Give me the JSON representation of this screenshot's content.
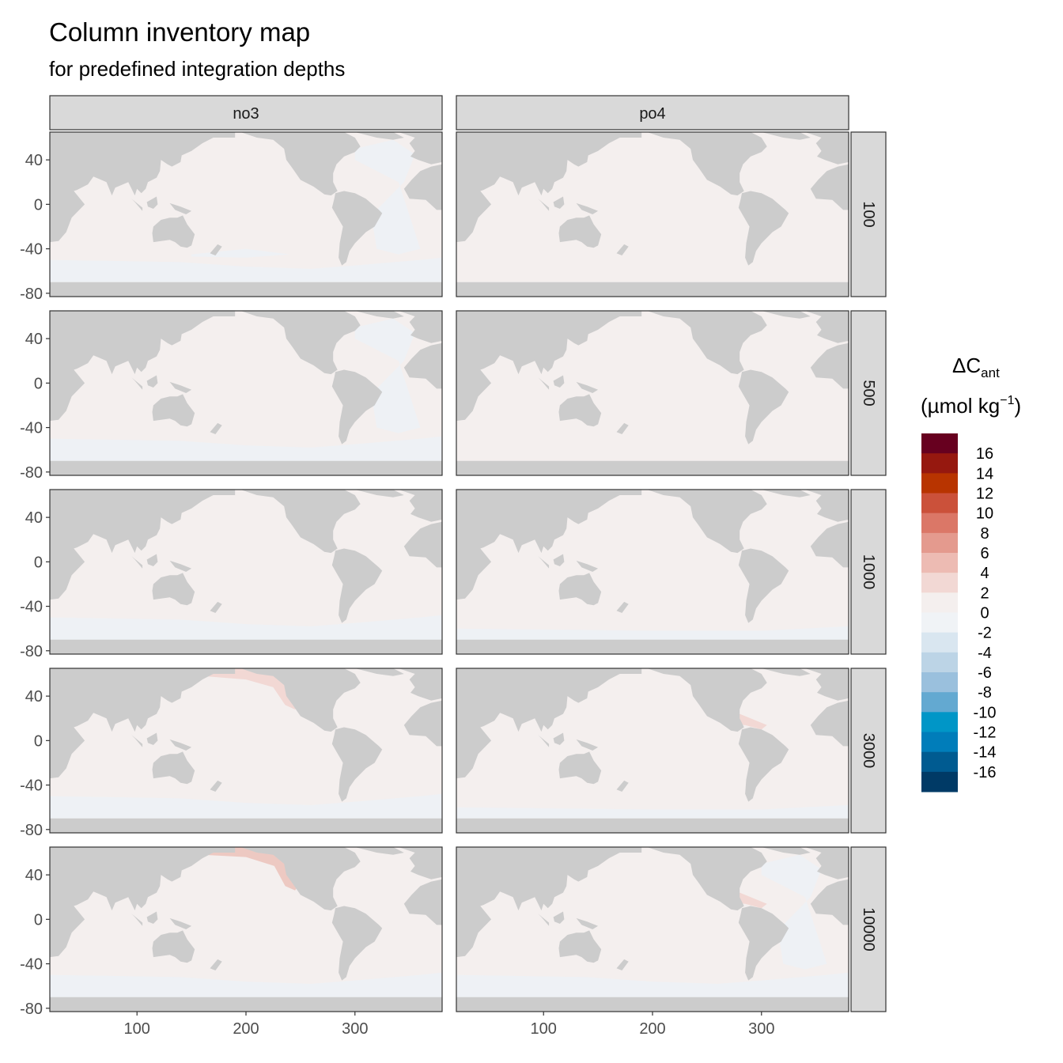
{
  "title": "Column inventory map",
  "subtitle": "for predefined integration depths",
  "chart_data": {
    "type": "heatmap",
    "title": "Column inventory map",
    "subtitle": "for predefined integration depths",
    "facet_columns": [
      "no3",
      "po4"
    ],
    "facet_rows": [
      "100",
      "500",
      "1000",
      "3000",
      "10000"
    ],
    "x_ticks": [
      "100",
      "200",
      "300"
    ],
    "y_ticks": [
      "40",
      "0",
      "-40",
      "-80"
    ],
    "xlim": [
      20,
      380
    ],
    "ylim": [
      -83,
      65
    ],
    "x_tick_values": [
      100,
      200,
      300
    ],
    "y_tick_values": [
      40,
      0,
      -40,
      -80
    ],
    "land_color": "#cccccc",
    "legend": {
      "title_main": "ΔC",
      "title_sub": "ant",
      "unit_main": "(µmol kg",
      "unit_sup": "−1",
      "unit_close": ")",
      "labels": [
        "16",
        "14",
        "12",
        "10",
        "8",
        "6",
        "4",
        "2",
        "0",
        "-2",
        "-4",
        "-6",
        "-8",
        "-10",
        "-12",
        "-14",
        "-16"
      ],
      "bins": [
        18,
        16,
        14,
        12,
        10,
        8,
        6,
        4,
        2,
        0,
        -2,
        -4,
        -6,
        -8,
        -10,
        -12,
        -14,
        -16,
        -18
      ],
      "colors": [
        "#67001f",
        "#96180f",
        "#b83400",
        "#cb513a",
        "#db7767",
        "#e49a8e",
        "#edbbb3",
        "#f2d8d4",
        "#f4efee",
        "#f0f3f6",
        "#d9e6f0",
        "#bcd4e6",
        "#9ac0dd",
        "#63a9d1",
        "#0096c7",
        "#007dba",
        "#005b91",
        "#003a66"
      ]
    },
    "panels": [
      {
        "col": "no3",
        "row": "100",
        "ocean": "#f4efee",
        "features": [
          "north-atlantic-light",
          "southern-band-light",
          "south-pacific-streak-light"
        ]
      },
      {
        "col": "po4",
        "row": "100",
        "ocean": "#f4efee",
        "features": []
      },
      {
        "col": "no3",
        "row": "500",
        "ocean": "#f4efee",
        "features": [
          "north-atlantic-light",
          "southern-band-light"
        ]
      },
      {
        "col": "po4",
        "row": "500",
        "ocean": "#f4efee",
        "features": []
      },
      {
        "col": "no3",
        "row": "1000",
        "ocean": "#f4efee",
        "features": [
          "southern-band-light"
        ]
      },
      {
        "col": "po4",
        "row": "1000",
        "ocean": "#f4efee",
        "features": [
          "southern-band-light-small"
        ]
      },
      {
        "col": "no3",
        "row": "3000",
        "ocean": "#f4efee",
        "features": [
          "north-pacific-warm",
          "southern-band-light"
        ]
      },
      {
        "col": "po4",
        "row": "3000",
        "ocean": "#f4efee",
        "features": [
          "caribbean-warm",
          "southern-band-light-small"
        ]
      },
      {
        "col": "no3",
        "row": "10000",
        "ocean": "#f4efee",
        "features": [
          "north-pacific-warm-strong",
          "southern-band-light"
        ]
      },
      {
        "col": "po4",
        "row": "10000",
        "ocean": "#f4efee",
        "features": [
          "caribbean-warm",
          "north-atlantic-light",
          "southern-band-light"
        ]
      }
    ]
  }
}
